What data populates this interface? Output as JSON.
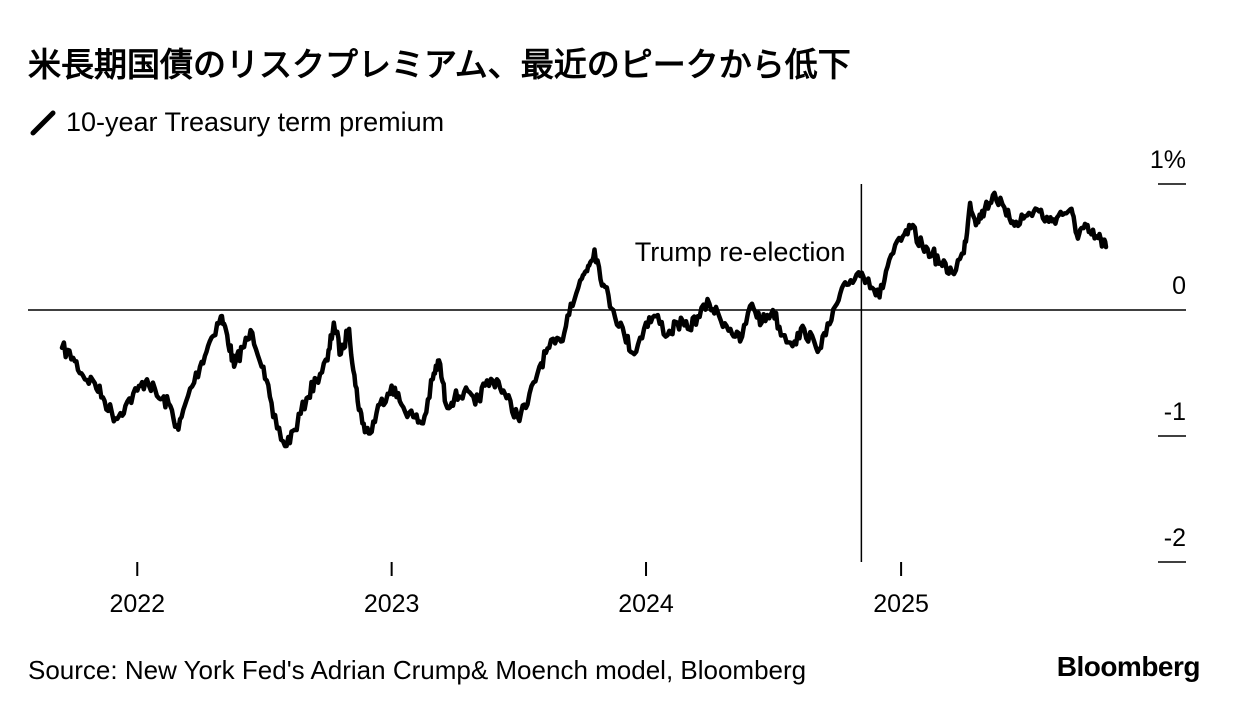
{
  "title": "米長期国債のリスクプレミアム、最近のピークから低下",
  "source": "Source: New York Fed's Adrian Crump& Moench model, Bloomberg",
  "brand": "Bloomberg",
  "colors": {
    "line": "#000000",
    "axis": "#000000",
    "background": "#ffffff"
  },
  "icons": {
    "legend": "diagonal-line-icon"
  },
  "chart_data": {
    "type": "line",
    "series": [
      {
        "name": "10-year Treasury term premium",
        "points": [
          [
            "2021-09-15",
            -0.3
          ],
          [
            "2021-10-01",
            -0.38
          ],
          [
            "2021-10-15",
            -0.52
          ],
          [
            "2021-11-01",
            -0.58
          ],
          [
            "2021-11-15",
            -0.72
          ],
          [
            "2021-12-01",
            -0.86
          ],
          [
            "2021-12-15",
            -0.76
          ],
          [
            "2022-01-01",
            -0.64
          ],
          [
            "2022-01-15",
            -0.55
          ],
          [
            "2022-02-01",
            -0.7
          ],
          [
            "2022-02-15",
            -0.74
          ],
          [
            "2022-03-01",
            -0.95
          ],
          [
            "2022-03-15",
            -0.68
          ],
          [
            "2022-04-01",
            -0.45
          ],
          [
            "2022-04-15",
            -0.25
          ],
          [
            "2022-05-01",
            -0.05
          ],
          [
            "2022-05-10",
            -0.2
          ],
          [
            "2022-05-20",
            -0.45
          ],
          [
            "2022-06-01",
            -0.3
          ],
          [
            "2022-06-15",
            -0.18
          ],
          [
            "2022-07-01",
            -0.45
          ],
          [
            "2022-07-15",
            -0.85
          ],
          [
            "2022-08-01",
            -1.08
          ],
          [
            "2022-08-15",
            -0.95
          ],
          [
            "2022-09-01",
            -0.7
          ],
          [
            "2022-09-15",
            -0.55
          ],
          [
            "2022-10-01",
            -0.4
          ],
          [
            "2022-10-10",
            -0.1
          ],
          [
            "2022-10-20",
            -0.35
          ],
          [
            "2022-11-01",
            -0.15
          ],
          [
            "2022-11-10",
            -0.6
          ],
          [
            "2022-11-20",
            -0.9
          ],
          [
            "2022-12-01",
            -0.98
          ],
          [
            "2022-12-15",
            -0.75
          ],
          [
            "2023-01-01",
            -0.6
          ],
          [
            "2023-01-15",
            -0.75
          ],
          [
            "2023-02-01",
            -0.85
          ],
          [
            "2023-02-15",
            -0.9
          ],
          [
            "2023-03-01",
            -0.55
          ],
          [
            "2023-03-10",
            -0.4
          ],
          [
            "2023-03-20",
            -0.75
          ],
          [
            "2023-04-01",
            -0.7
          ],
          [
            "2023-04-15",
            -0.65
          ],
          [
            "2023-05-01",
            -0.75
          ],
          [
            "2023-05-15",
            -0.6
          ],
          [
            "2023-06-01",
            -0.55
          ],
          [
            "2023-06-15",
            -0.7
          ],
          [
            "2023-07-01",
            -0.85
          ],
          [
            "2023-07-15",
            -0.75
          ],
          [
            "2023-08-01",
            -0.45
          ],
          [
            "2023-08-15",
            -0.3
          ],
          [
            "2023-09-01",
            -0.25
          ],
          [
            "2023-09-15",
            0.05
          ],
          [
            "2023-10-01",
            0.25
          ],
          [
            "2023-10-10",
            0.35
          ],
          [
            "2023-10-19",
            0.48
          ],
          [
            "2023-11-01",
            0.2
          ],
          [
            "2023-11-15",
            0.0
          ],
          [
            "2023-12-01",
            -0.2
          ],
          [
            "2023-12-15",
            -0.35
          ],
          [
            "2024-01-01",
            -0.1
          ],
          [
            "2024-01-15",
            -0.05
          ],
          [
            "2024-02-01",
            -0.2
          ],
          [
            "2024-02-15",
            -0.1
          ],
          [
            "2024-03-01",
            -0.15
          ],
          [
            "2024-03-15",
            -0.05
          ],
          [
            "2024-04-01",
            0.05
          ],
          [
            "2024-04-15",
            -0.05
          ],
          [
            "2024-05-01",
            -0.15
          ],
          [
            "2024-05-15",
            -0.25
          ],
          [
            "2024-06-01",
            0.05
          ],
          [
            "2024-06-15",
            -0.1
          ],
          [
            "2024-07-01",
            0.0
          ],
          [
            "2024-07-15",
            -0.2
          ],
          [
            "2024-08-01",
            -0.25
          ],
          [
            "2024-08-15",
            -0.15
          ],
          [
            "2024-09-01",
            -0.3
          ],
          [
            "2024-09-15",
            -0.2
          ],
          [
            "2024-10-01",
            0.05
          ],
          [
            "2024-10-15",
            0.2
          ],
          [
            "2024-11-01",
            0.3
          ],
          [
            "2024-11-15",
            0.25
          ],
          [
            "2024-12-01",
            0.1
          ],
          [
            "2024-12-15",
            0.4
          ],
          [
            "2025-01-01",
            0.55
          ],
          [
            "2025-01-15",
            0.65
          ],
          [
            "2025-02-01",
            0.5
          ],
          [
            "2025-02-15",
            0.45
          ],
          [
            "2025-03-01",
            0.35
          ],
          [
            "2025-03-15",
            0.3
          ],
          [
            "2025-04-01",
            0.45
          ],
          [
            "2025-04-10",
            0.85
          ],
          [
            "2025-04-20",
            0.7
          ],
          [
            "2025-05-01",
            0.8
          ],
          [
            "2025-05-15",
            0.93
          ],
          [
            "2025-06-01",
            0.75
          ],
          [
            "2025-06-15",
            0.7
          ],
          [
            "2025-07-01",
            0.75
          ],
          [
            "2025-07-15",
            0.8
          ],
          [
            "2025-08-01",
            0.7
          ],
          [
            "2025-08-15",
            0.75
          ],
          [
            "2025-09-01",
            0.8
          ],
          [
            "2025-09-10",
            0.6
          ],
          [
            "2025-09-20",
            0.65
          ],
          [
            "2025-10-01",
            0.6
          ],
          [
            "2025-10-15",
            0.55
          ],
          [
            "2025-10-22",
            0.5
          ]
        ]
      }
    ],
    "y_axis": {
      "min": -2,
      "max": 1,
      "ticks": [
        1,
        0,
        -1,
        -2
      ],
      "tick_labels": [
        "1%",
        "0",
        "-1",
        "-2"
      ]
    },
    "x_axis": {
      "ticks": [
        "2022-01-01",
        "2023-01-01",
        "2024-01-01",
        "2025-01-01"
      ],
      "tick_labels": [
        "2022",
        "2023",
        "2024",
        "2025"
      ],
      "range": [
        "2021-09-15",
        "2025-11-15"
      ]
    },
    "reference_lines": [
      {
        "axis": "y",
        "value": 0
      }
    ],
    "annotations": [
      {
        "date": "2024-11-05",
        "label": "Trump re-election"
      }
    ],
    "legend_placement": "top-left"
  }
}
